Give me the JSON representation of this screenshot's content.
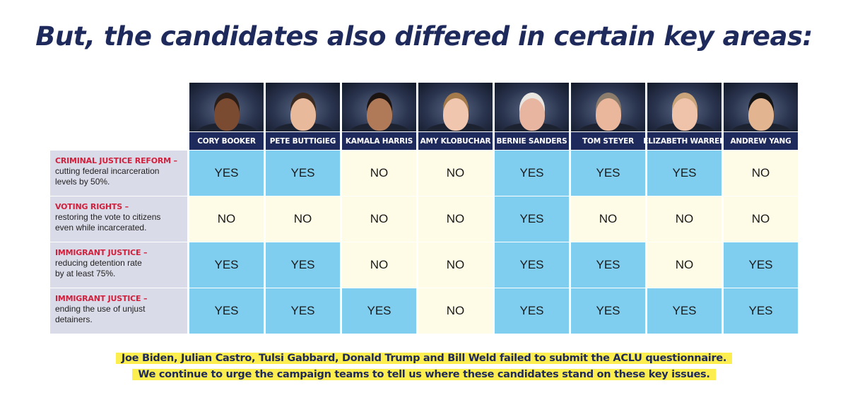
{
  "title": "But, the candidates also differed in certain key areas:",
  "candidates": [
    {
      "name": "CORY BOOKER",
      "skin": "#7a4a31",
      "hair": "#2a1d17"
    },
    {
      "name": "PETE BUTTIGIEG",
      "skin": "#e8b99a",
      "hair": "#3a2a20"
    },
    {
      "name": "KAMALA HARRIS",
      "skin": "#b07a58",
      "hair": "#1c1410"
    },
    {
      "name": "AMY KLOBUCHAR",
      "skin": "#f0c7ae",
      "hair": "#a57a4b"
    },
    {
      "name": "BERNIE SANDERS",
      "skin": "#e8b6a0",
      "hair": "#e9e6e1"
    },
    {
      "name": "TOM STEYER",
      "skin": "#eab69c",
      "hair": "#8c7c6c"
    },
    {
      "name": "ELIZABETH WARREN",
      "skin": "#efc3aa",
      "hair": "#c9a37a"
    },
    {
      "name": "ANDREW YANG",
      "skin": "#e2b48f",
      "hair": "#141414"
    }
  ],
  "issues": [
    {
      "heading": "CRIMINAL JUSTICE REFORM –",
      "lines": [
        "cutting federal incarceration",
        "levels by 50%."
      ],
      "values": [
        "YES",
        "YES",
        "NO",
        "NO",
        "YES",
        "YES",
        "YES",
        "NO"
      ]
    },
    {
      "heading": "VOTING RIGHTS –",
      "lines": [
        "restoring the vote to citizens",
        "even while incarcerated."
      ],
      "values": [
        "NO",
        "NO",
        "NO",
        "NO",
        "YES",
        "NO",
        "NO",
        "NO"
      ]
    },
    {
      "heading": "IMMIGRANT JUSTICE –",
      "lines": [
        "reducing detention rate",
        "by at least 75%."
      ],
      "values": [
        "YES",
        "YES",
        "NO",
        "NO",
        "YES",
        "YES",
        "NO",
        "YES"
      ]
    },
    {
      "heading": "IMMIGRANT JUSTICE –",
      "lines": [
        "ending the use of unjust",
        "detainers."
      ],
      "values": [
        "YES",
        "YES",
        "YES",
        "NO",
        "YES",
        "YES",
        "YES",
        "YES"
      ]
    }
  ],
  "colors": {
    "yes": "#7fcdef",
    "no": "#fefbe6",
    "header": "#1f2a5c",
    "issue": "#d21f3c",
    "highlight": "#fcee4f"
  },
  "note": {
    "line1": "Joe Biden, Julian Castro, Tulsi Gabbard, Donald Trump and Bill Weld failed to submit the ACLU questionnaire.",
    "line2": "We continue to urge the campaign teams to tell us where these candidates stand on these key issues."
  }
}
